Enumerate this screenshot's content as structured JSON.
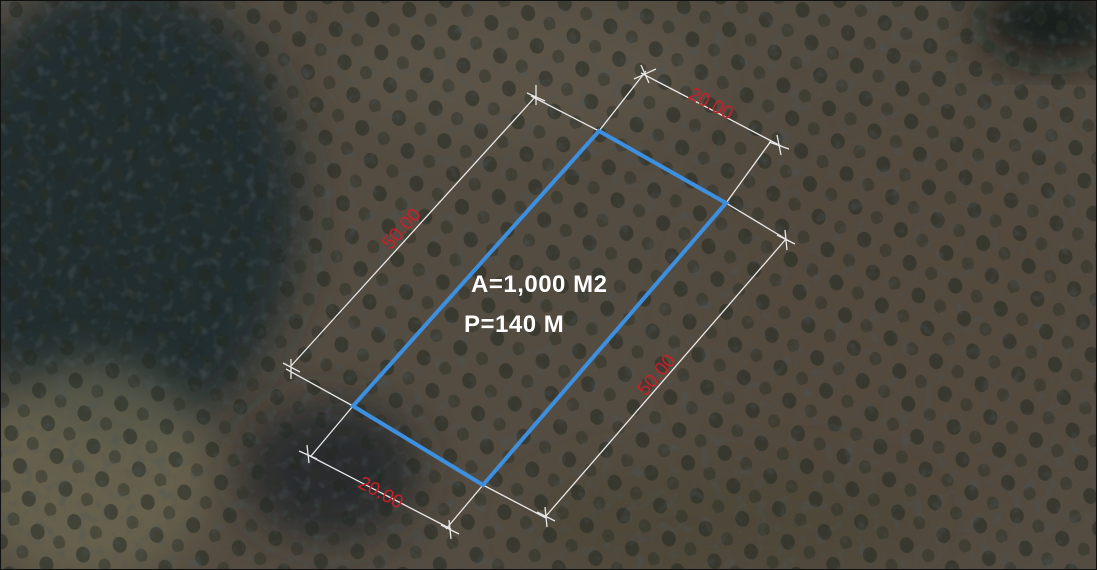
{
  "map": {
    "area_label": "A=1,000 M2",
    "perimeter_label": "P=140 M",
    "dimensions": {
      "top_short": "20.00",
      "left_long": "50.00",
      "right_long": "50.00",
      "bottom_short": "20.00"
    }
  },
  "colors": {
    "plot_outline": "#3d8fe0",
    "dimension_line": "#e8e8e8",
    "dimension_text": "#c8202a",
    "label_text": "#ffffff"
  }
}
